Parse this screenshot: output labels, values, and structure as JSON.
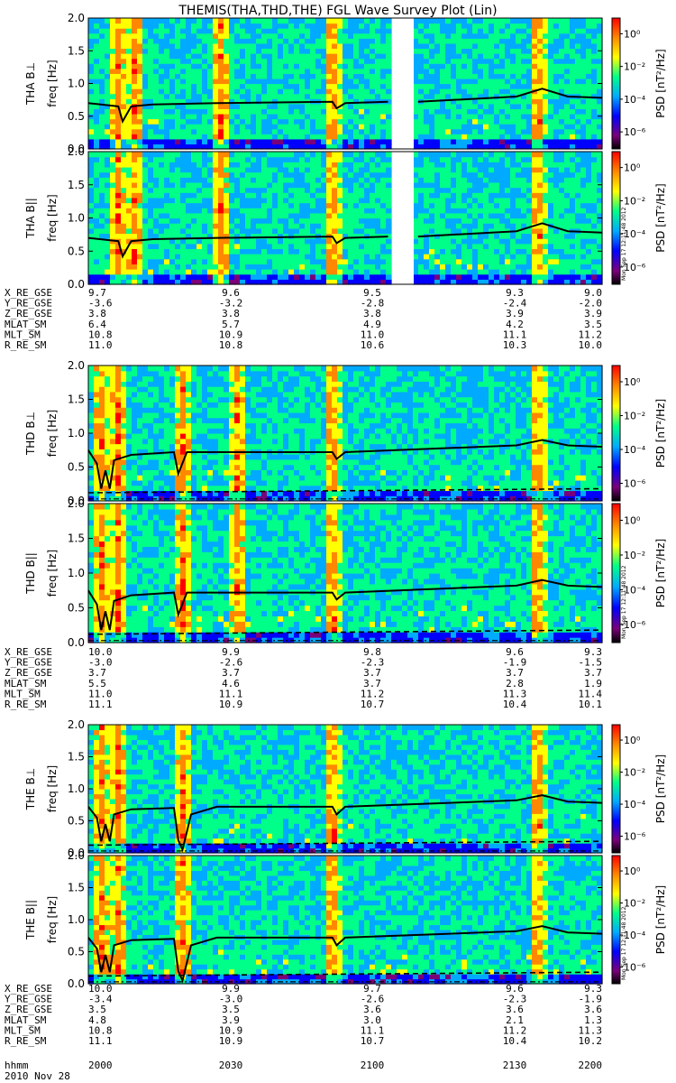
{
  "title": "THEMIS(THA,THD,THE) FGL Wave Survey Plot (Lin)",
  "date_label": "2010 Nov 28",
  "stamp": "Mon Sep 17 12:11:48 2012",
  "yaxis": {
    "title": "freq [Hz]",
    "range": [
      0.0,
      2.0
    ],
    "ticks": [
      "0.0",
      "0.5",
      "1.0",
      "1.5",
      "2.0"
    ]
  },
  "colorbar": {
    "title": "PSD [nT²/Hz]",
    "ticks": [
      "10⁰",
      "10⁻²",
      "10⁻⁴",
      "10⁻⁶"
    ],
    "scale": "log"
  },
  "time_axis": {
    "label": "hhmm",
    "ticks": [
      "2000",
      "2030",
      "2100",
      "2130",
      "2200"
    ]
  },
  "panels": [
    {
      "label": "THA B⊥"
    },
    {
      "label": "THA B||"
    },
    {
      "label": "THD B⊥"
    },
    {
      "label": "THD B||"
    },
    {
      "label": "THE B⊥"
    },
    {
      "label": "THE B||"
    }
  ],
  "ephemeris": [
    {
      "spacecraft": "THA",
      "rows": [
        {
          "label": "X_RE_GSE",
          "values": [
            "9.7",
            "9.6",
            "9.5",
            "9.3",
            "9.0"
          ]
        },
        {
          "label": "Y_RE_GSE",
          "values": [
            "-3.6",
            "-3.2",
            "-2.8",
            "-2.4",
            "-2.0"
          ]
        },
        {
          "label": "Z_RE_GSE",
          "values": [
            "3.8",
            "3.8",
            "3.8",
            "3.9",
            "3.9"
          ]
        },
        {
          "label": "MLAT_SM",
          "values": [
            "6.4",
            "5.7",
            "4.9",
            "4.2",
            "3.5"
          ]
        },
        {
          "label": "MLT_SM",
          "values": [
            "10.8",
            "10.9",
            "11.0",
            "11.1",
            "11.2"
          ]
        },
        {
          "label": "R_RE_SM",
          "values": [
            "11.0",
            "10.8",
            "10.6",
            "10.3",
            "10.0"
          ]
        }
      ]
    },
    {
      "spacecraft": "THD",
      "rows": [
        {
          "label": "X_RE_GSE",
          "values": [
            "10.0",
            "9.9",
            "9.8",
            "9.6",
            "9.3"
          ]
        },
        {
          "label": "Y_RE_GSE",
          "values": [
            "-3.0",
            "-2.6",
            "-2.3",
            "-1.9",
            "-1.5"
          ]
        },
        {
          "label": "Z_RE_GSE",
          "values": [
            "3.7",
            "3.7",
            "3.7",
            "3.7",
            "3.7"
          ]
        },
        {
          "label": "MLAT_SM",
          "values": [
            "5.5",
            "4.6",
            "3.7",
            "2.8",
            "1.9"
          ]
        },
        {
          "label": "MLT_SM",
          "values": [
            "11.0",
            "11.1",
            "11.2",
            "11.3",
            "11.4"
          ]
        },
        {
          "label": "R_RE_SM",
          "values": [
            "11.1",
            "10.9",
            "10.7",
            "10.4",
            "10.1"
          ]
        }
      ]
    },
    {
      "spacecraft": "THE",
      "rows": [
        {
          "label": "X_RE_GSE",
          "values": [
            "10.0",
            "9.9",
            "9.7",
            "9.6",
            "9.3"
          ]
        },
        {
          "label": "Y_RE_GSE",
          "values": [
            "-3.4",
            "-3.0",
            "-2.6",
            "-2.3",
            "-1.9"
          ]
        },
        {
          "label": "Z_RE_GSE",
          "values": [
            "3.5",
            "3.5",
            "3.6",
            "3.6",
            "3.6"
          ]
        },
        {
          "label": "MLAT_SM",
          "values": [
            "4.8",
            "3.9",
            "3.0",
            "2.1",
            "1.3"
          ]
        },
        {
          "label": "MLT_SM",
          "values": [
            "10.8",
            "10.9",
            "11.1",
            "11.2",
            "11.3"
          ]
        },
        {
          "label": "R_RE_SM",
          "values": [
            "11.1",
            "10.9",
            "10.7",
            "10.4",
            "10.2"
          ]
        }
      ]
    }
  ],
  "chart_data": {
    "type": "heatmap",
    "title": "THEMIS(THA,THD,THE) FGL Wave Survey Plot (Lin)",
    "xlabel": "hhmm",
    "ylabel": "freq [Hz]",
    "xlim": [
      "2000",
      "2200"
    ],
    "ylim": [
      0.0,
      2.0
    ],
    "colorscale": "log PSD [nT²/Hz], 10⁻⁶ to 10¹",
    "colors": [
      "#000000",
      "#7a007a",
      "#0000ff",
      "#00aaff",
      "#00ff88",
      "#ffff00",
      "#ff8800",
      "#ff0000"
    ],
    "panels": [
      {
        "name": "THA B⊥",
        "data_gap": [
          "2111",
          "2116"
        ],
        "events_hhmm": [
          "2007",
          "2011",
          "2031",
          "2057",
          "2145"
        ],
        "solid_line": [
          [
            2000,
            0.7
          ],
          [
            2007,
            0.65
          ],
          [
            2008,
            0.42
          ],
          [
            2010,
            0.65
          ],
          [
            2015,
            0.68
          ],
          [
            2030,
            0.7
          ],
          [
            2057,
            0.72
          ],
          [
            2058,
            0.62
          ],
          [
            2060,
            0.7
          ],
          [
            2110,
            0.72
          ],
          [
            2117,
            0.72
          ],
          [
            2140,
            0.8
          ],
          [
            2146,
            0.92
          ],
          [
            2152,
            0.8
          ],
          [
            2200,
            0.78
          ]
        ],
        "dashed_line": [
          [
            2000,
            0.15
          ],
          [
            2200,
            0.18
          ]
        ],
        "dotdash_line": [
          [
            2000,
            0.03
          ],
          [
            2200,
            0.03
          ]
        ]
      },
      {
        "name": "THA B||",
        "data_gap": [
          "2111",
          "2116"
        ],
        "events_hhmm": [
          "2007",
          "2011",
          "2031",
          "2057",
          "2145"
        ],
        "solid_line": [
          [
            2000,
            0.7
          ],
          [
            2007,
            0.65
          ],
          [
            2008,
            0.42
          ],
          [
            2010,
            0.65
          ],
          [
            2015,
            0.68
          ],
          [
            2030,
            0.7
          ],
          [
            2057,
            0.72
          ],
          [
            2058,
            0.62
          ],
          [
            2060,
            0.7
          ],
          [
            2110,
            0.72
          ],
          [
            2117,
            0.72
          ],
          [
            2140,
            0.8
          ],
          [
            2146,
            0.92
          ],
          [
            2152,
            0.8
          ],
          [
            2200,
            0.78
          ]
        ],
        "dashed_line": [
          [
            2000,
            0.15
          ],
          [
            2200,
            0.18
          ]
        ],
        "dotdash_line": [
          [
            2000,
            0.03
          ],
          [
            2200,
            0.03
          ]
        ]
      },
      {
        "name": "THD B⊥",
        "events_hhmm": [
          "2003",
          "2007",
          "2022",
          "2035",
          "2057",
          "2145"
        ],
        "solid_line": [
          [
            2000,
            0.75
          ],
          [
            2002,
            0.55
          ],
          [
            2003,
            0.18
          ],
          [
            2004,
            0.45
          ],
          [
            2005,
            0.18
          ],
          [
            2006,
            0.6
          ],
          [
            2010,
            0.68
          ],
          [
            2020,
            0.72
          ],
          [
            2021,
            0.4
          ],
          [
            2023,
            0.72
          ],
          [
            2057,
            0.72
          ],
          [
            2058,
            0.62
          ],
          [
            2060,
            0.72
          ],
          [
            2140,
            0.82
          ],
          [
            2146,
            0.9
          ],
          [
            2152,
            0.82
          ],
          [
            2200,
            0.8
          ]
        ],
        "dashed_line": [
          [
            2000,
            0.12
          ],
          [
            2200,
            0.18
          ]
        ],
        "dotdash_line": [
          [
            2000,
            0.03
          ],
          [
            2200,
            0.03
          ]
        ]
      },
      {
        "name": "THD B||",
        "events_hhmm": [
          "2003",
          "2007",
          "2022",
          "2035",
          "2057",
          "2145"
        ],
        "solid_line": [
          [
            2000,
            0.75
          ],
          [
            2002,
            0.55
          ],
          [
            2003,
            0.18
          ],
          [
            2004,
            0.45
          ],
          [
            2005,
            0.18
          ],
          [
            2006,
            0.6
          ],
          [
            2010,
            0.68
          ],
          [
            2020,
            0.72
          ],
          [
            2021,
            0.4
          ],
          [
            2023,
            0.72
          ],
          [
            2057,
            0.72
          ],
          [
            2058,
            0.62
          ],
          [
            2060,
            0.72
          ],
          [
            2140,
            0.82
          ],
          [
            2146,
            0.9
          ],
          [
            2152,
            0.82
          ],
          [
            2200,
            0.8
          ]
        ],
        "dashed_line": [
          [
            2000,
            0.12
          ],
          [
            2200,
            0.18
          ]
        ],
        "dotdash_line": [
          [
            2000,
            0.03
          ],
          [
            2200,
            0.03
          ]
        ]
      },
      {
        "name": "THE B⊥",
        "events_hhmm": [
          "2003",
          "2007",
          "2022",
          "2057",
          "2145"
        ],
        "solid_line": [
          [
            2000,
            0.72
          ],
          [
            2002,
            0.55
          ],
          [
            2003,
            0.18
          ],
          [
            2004,
            0.45
          ],
          [
            2005,
            0.18
          ],
          [
            2006,
            0.6
          ],
          [
            2010,
            0.68
          ],
          [
            2020,
            0.7
          ],
          [
            2021,
            0.2
          ],
          [
            2022,
            0.05
          ],
          [
            2024,
            0.6
          ],
          [
            2030,
            0.72
          ],
          [
            2057,
            0.72
          ],
          [
            2058,
            0.6
          ],
          [
            2060,
            0.72
          ],
          [
            2140,
            0.82
          ],
          [
            2146,
            0.9
          ],
          [
            2152,
            0.8
          ],
          [
            2200,
            0.78
          ]
        ],
        "dashed_line": [
          [
            2000,
            0.12
          ],
          [
            2200,
            0.18
          ]
        ],
        "dotdash_line": [
          [
            2000,
            0.03
          ],
          [
            2200,
            0.03
          ]
        ]
      },
      {
        "name": "THE B||",
        "events_hhmm": [
          "2003",
          "2007",
          "2022",
          "2057",
          "2145"
        ],
        "solid_line": [
          [
            2000,
            0.72
          ],
          [
            2002,
            0.55
          ],
          [
            2003,
            0.18
          ],
          [
            2004,
            0.45
          ],
          [
            2005,
            0.18
          ],
          [
            2006,
            0.6
          ],
          [
            2010,
            0.68
          ],
          [
            2020,
            0.7
          ],
          [
            2021,
            0.2
          ],
          [
            2022,
            0.05
          ],
          [
            2024,
            0.6
          ],
          [
            2030,
            0.72
          ],
          [
            2057,
            0.72
          ],
          [
            2058,
            0.6
          ],
          [
            2060,
            0.72
          ],
          [
            2140,
            0.82
          ],
          [
            2146,
            0.9
          ],
          [
            2152,
            0.8
          ],
          [
            2200,
            0.78
          ]
        ],
        "dashed_line": [
          [
            2000,
            0.12
          ],
          [
            2200,
            0.18
          ]
        ],
        "dotdash_line": [
          [
            2000,
            0.03
          ],
          [
            2200,
            0.03
          ]
        ]
      }
    ]
  }
}
